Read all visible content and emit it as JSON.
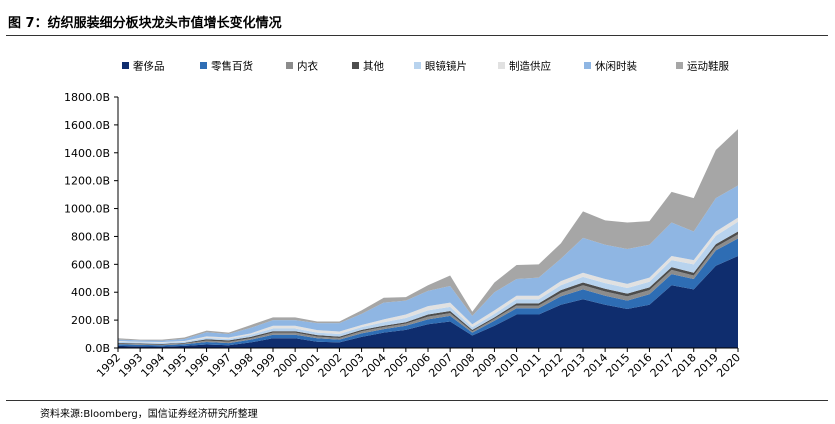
{
  "header": {
    "title": "图 7：纺织服装细分板块龙头市值增长变化情况"
  },
  "footer": {
    "source": "资料来源:Bloomberg，国信证券经济研究所整理"
  },
  "chart_data": {
    "type": "area",
    "stacked": true,
    "title": "图 7：纺织服装细分板块龙头市值增长变化情况",
    "xlabel": "",
    "ylabel": "",
    "ylim": [
      0,
      1800
    ],
    "yticks": [
      "0.0B",
      "200.0B",
      "400.0B",
      "600.0B",
      "800.0B",
      "1000.0B",
      "1200.0B",
      "1400.0B",
      "1600.0B",
      "1800.0B"
    ],
    "ytick_values": [
      0,
      200,
      400,
      600,
      800,
      1000,
      1200,
      1400,
      1600,
      1800
    ],
    "legend_position": "top",
    "grid": false,
    "x": [
      "1992",
      "1993",
      "1994",
      "1995",
      "1996",
      "1997",
      "1998",
      "1999",
      "2000",
      "2001",
      "2002",
      "2003",
      "2004",
      "2005",
      "2006",
      "2007",
      "2008",
      "2009",
      "2010",
      "2011",
      "2012",
      "2013",
      "2014",
      "2015",
      "2016",
      "2017",
      "2018",
      "2019",
      "2020"
    ],
    "series": [
      {
        "name": "奢侈品",
        "color": "#0f2d6e",
        "values": [
          15,
          12,
          10,
          15,
          25,
          20,
          40,
          70,
          70,
          45,
          40,
          80,
          110,
          130,
          170,
          190,
          90,
          160,
          240,
          240,
          310,
          350,
          310,
          280,
          310,
          450,
          420,
          590,
          660
        ]
      },
      {
        "name": "零售百货",
        "color": "#2e6db4",
        "values": [
          12,
          10,
          10,
          12,
          18,
          15,
          20,
          25,
          25,
          25,
          20,
          25,
          25,
          30,
          35,
          40,
          20,
          35,
          45,
          45,
          60,
          70,
          65,
          60,
          75,
          80,
          75,
          110,
          125
        ]
      },
      {
        "name": "内衣",
        "color": "#8c8c8c",
        "values": [
          5,
          5,
          5,
          5,
          10,
          10,
          10,
          15,
          15,
          12,
          12,
          15,
          15,
          15,
          20,
          20,
          10,
          15,
          20,
          20,
          25,
          30,
          30,
          30,
          30,
          30,
          25,
          25,
          30
        ]
      },
      {
        "name": "其他",
        "color": "#4d4d4d",
        "values": [
          5,
          5,
          5,
          5,
          10,
          10,
          10,
          10,
          10,
          10,
          10,
          10,
          10,
          10,
          15,
          15,
          10,
          10,
          15,
          15,
          20,
          20,
          20,
          20,
          20,
          20,
          20,
          20,
          20
        ]
      },
      {
        "name": "眼镜镜片",
        "color": "#b8d3ee",
        "values": [
          8,
          8,
          8,
          8,
          10,
          10,
          15,
          20,
          20,
          18,
          18,
          20,
          25,
          30,
          30,
          30,
          20,
          25,
          30,
          30,
          35,
          40,
          40,
          40,
          40,
          50,
          60,
          60,
          70
        ]
      },
      {
        "name": "制造供应",
        "color": "#e1e1e1",
        "values": [
          5,
          5,
          5,
          5,
          10,
          10,
          10,
          20,
          20,
          18,
          18,
          15,
          20,
          25,
          30,
          30,
          20,
          25,
          25,
          25,
          30,
          30,
          30,
          30,
          30,
          30,
          30,
          30,
          30
        ]
      },
      {
        "name": "休闲时装",
        "color": "#8fb6e3",
        "values": [
          10,
          10,
          10,
          15,
          30,
          25,
          40,
          40,
          40,
          50,
          60,
          80,
          120,
          100,
          110,
          120,
          60,
          130,
          120,
          130,
          160,
          250,
          245,
          250,
          235,
          240,
          205,
          240,
          230
        ]
      },
      {
        "name": "运动鞋服",
        "color": "#a6a6a6",
        "values": [
          10,
          5,
          7,
          10,
          12,
          10,
          20,
          20,
          20,
          12,
          12,
          25,
          35,
          25,
          40,
          75,
          30,
          70,
          100,
          95,
          110,
          190,
          175,
          190,
          170,
          220,
          240,
          345,
          405
        ]
      }
    ]
  }
}
